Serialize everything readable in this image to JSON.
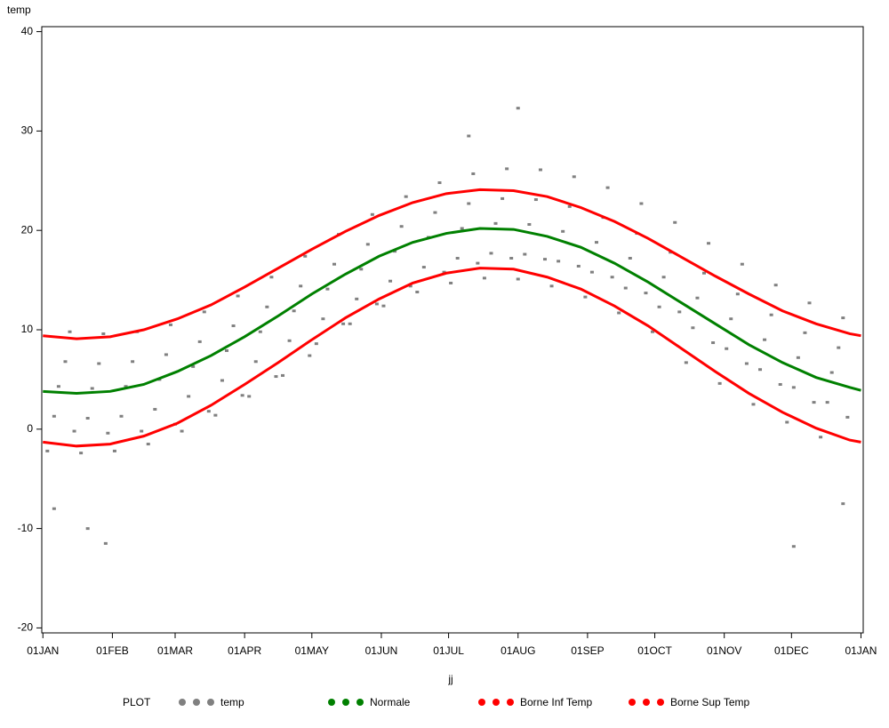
{
  "chart_data": {
    "type": "scatter",
    "x_label": "jj",
    "y_label": "temp",
    "legend_title": "PLOT",
    "xlim": [
      -0.5,
      366
    ],
    "ylim": [
      -20.5,
      40.5
    ],
    "xticks": [
      {
        "value": 0,
        "label": "01JAN"
      },
      {
        "value": 31,
        "label": "01FEB"
      },
      {
        "value": 59,
        "label": "01MAR"
      },
      {
        "value": 90,
        "label": "01APR"
      },
      {
        "value": 120,
        "label": "01MAY"
      },
      {
        "value": 151,
        "label": "01JUN"
      },
      {
        "value": 181,
        "label": "01JUL"
      },
      {
        "value": 212,
        "label": "01AUG"
      },
      {
        "value": 243,
        "label": "01SEP"
      },
      {
        "value": 273,
        "label": "01OCT"
      },
      {
        "value": 304,
        "label": "01NOV"
      },
      {
        "value": 334,
        "label": "01DEC"
      },
      {
        "value": 365,
        "label": "01JAN"
      }
    ],
    "yticks": [
      -20,
      -10,
      0,
      10,
      20,
      30,
      40
    ],
    "series": [
      {
        "name": "temp",
        "color": "#808080",
        "mode": "points",
        "x": [
          2,
          5,
          7,
          10,
          12,
          14,
          17,
          20,
          22,
          25,
          27,
          29,
          32,
          35,
          37,
          40,
          42,
          44,
          47,
          50,
          52,
          55,
          57,
          59,
          62,
          65,
          67,
          70,
          72,
          74,
          77,
          80,
          82,
          85,
          87,
          89,
          92,
          95,
          97,
          100,
          102,
          104,
          107,
          110,
          112,
          115,
          117,
          119,
          122,
          125,
          127,
          130,
          132,
          134,
          137,
          140,
          142,
          145,
          147,
          149,
          152,
          155,
          157,
          160,
          162,
          164,
          167,
          170,
          172,
          175,
          177,
          179,
          182,
          185,
          187,
          190,
          192,
          194,
          197,
          200,
          202,
          205,
          207,
          209,
          212,
          215,
          217,
          220,
          222,
          224,
          227,
          230,
          232,
          235,
          237,
          239,
          242,
          245,
          247,
          250,
          252,
          254,
          257,
          260,
          262,
          265,
          267,
          269,
          272,
          275,
          277,
          280,
          282,
          284,
          287,
          290,
          292,
          295,
          297,
          299,
          302,
          305,
          307,
          310,
          312,
          314,
          317,
          320,
          322,
          325,
          327,
          329,
          332,
          335,
          337,
          340,
          342,
          344,
          347,
          350,
          352,
          355,
          357,
          359,
          20,
          28,
          212,
          335,
          5,
          190,
          357
        ],
        "values": [
          -2.2,
          1.3,
          4.3,
          6.8,
          9.8,
          -0.2,
          -2.4,
          1.1,
          4.1,
          6.6,
          9.6,
          -0.4,
          -2.2,
          1.3,
          4.3,
          6.8,
          9.8,
          -0.2,
          -1.5,
          2,
          5,
          7.5,
          10.5,
          0.5,
          -0.2,
          3.3,
          6.3,
          8.8,
          11.8,
          1.8,
          1.4,
          4.9,
          7.9,
          10.4,
          13.4,
          3.4,
          3.3,
          6.8,
          9.8,
          12.3,
          15.3,
          5.3,
          5.4,
          8.9,
          11.9,
          14.4,
          17.4,
          7.4,
          8.6,
          11.1,
          14.1,
          16.6,
          19.6,
          10.6,
          10.6,
          13.1,
          16.1,
          18.6,
          21.6,
          12.6,
          12.4,
          14.9,
          17.9,
          20.4,
          23.4,
          14.4,
          13.8,
          16.3,
          19.3,
          21.8,
          24.8,
          15.8,
          14.7,
          17.2,
          20.2,
          22.7,
          25.7,
          16.7,
          15.2,
          17.7,
          20.7,
          23.2,
          26.2,
          17.2,
          15.1,
          17.6,
          20.6,
          23.1,
          26.1,
          17.1,
          14.4,
          16.9,
          19.9,
          22.4,
          25.4,
          16.4,
          13.3,
          15.8,
          18.8,
          21.3,
          24.3,
          15.3,
          11.7,
          14.2,
          17.2,
          19.7,
          22.7,
          13.7,
          9.8,
          12.3,
          15.3,
          17.8,
          20.8,
          11.8,
          6.7,
          10.2,
          13.2,
          15.7,
          18.7,
          8.7,
          4.6,
          8.1,
          11.1,
          13.6,
          16.6,
          6.6,
          2.5,
          6,
          9,
          11.5,
          14.5,
          4.5,
          0.7,
          4.2,
          7.2,
          9.7,
          12.7,
          2.7,
          -0.8,
          2.7,
          5.7,
          8.2,
          11.2,
          1.2,
          -10,
          -11.5,
          32.3,
          -11.8,
          -8,
          29.5,
          -7.5
        ]
      },
      {
        "name": "Normale",
        "color": "#008000",
        "mode": "line",
        "x": [
          0,
          15,
          30,
          45,
          60,
          75,
          90,
          105,
          120,
          135,
          150,
          165,
          180,
          195,
          210,
          225,
          240,
          255,
          270,
          285,
          300,
          315,
          330,
          345,
          360,
          365
        ],
        "values": [
          3.8,
          3.6,
          3.8,
          4.5,
          5.8,
          7.4,
          9.3,
          11.4,
          13.6,
          15.6,
          17.4,
          18.8,
          19.7,
          20.2,
          20.1,
          19.4,
          18.3,
          16.7,
          14.8,
          12.7,
          10.6,
          8.5,
          6.7,
          5.2,
          4.2,
          3.9
        ]
      },
      {
        "name": "Borne Inf Temp",
        "color": "#ff0000",
        "mode": "line",
        "x": [
          0,
          15,
          30,
          45,
          60,
          75,
          90,
          105,
          120,
          135,
          150,
          165,
          180,
          195,
          210,
          225,
          240,
          255,
          270,
          285,
          300,
          315,
          330,
          345,
          360,
          365
        ],
        "values": [
          -1.3,
          -1.7,
          -1.5,
          -0.7,
          0.6,
          2.4,
          4.5,
          6.7,
          9.0,
          11.2,
          13.1,
          14.7,
          15.7,
          16.2,
          16.1,
          15.3,
          14.1,
          12.4,
          10.4,
          8.1,
          5.8,
          3.6,
          1.7,
          0.1,
          -1.1,
          -1.3
        ]
      },
      {
        "name": "Borne Sup Temp",
        "color": "#ff0000",
        "mode": "line",
        "x": [
          0,
          15,
          30,
          45,
          60,
          75,
          90,
          105,
          120,
          135,
          150,
          165,
          180,
          195,
          210,
          225,
          240,
          255,
          270,
          285,
          300,
          315,
          330,
          345,
          360,
          365
        ],
        "values": [
          9.4,
          9.1,
          9.3,
          10.0,
          11.1,
          12.5,
          14.3,
          16.2,
          18.1,
          19.9,
          21.5,
          22.8,
          23.7,
          24.1,
          24.0,
          23.4,
          22.3,
          20.9,
          19.2,
          17.3,
          15.4,
          13.6,
          11.9,
          10.6,
          9.6,
          9.4
        ]
      }
    ]
  }
}
